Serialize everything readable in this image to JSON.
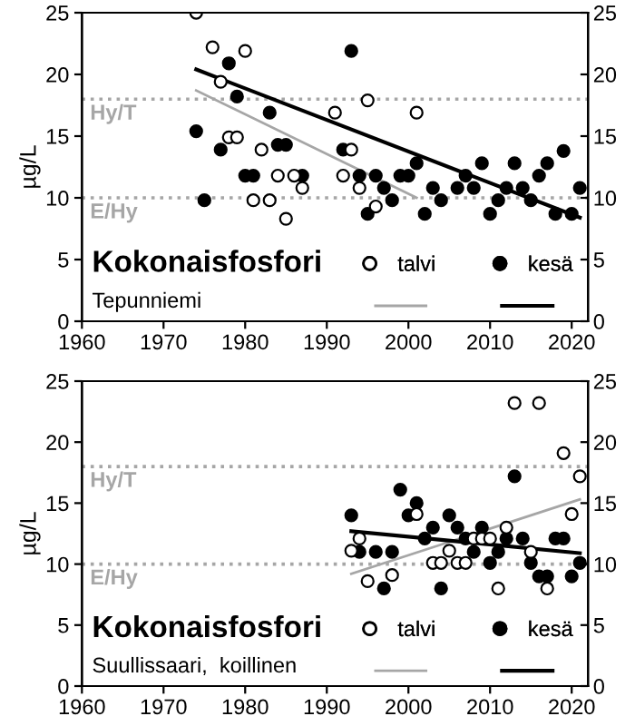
{
  "chart_data": [
    {
      "type": "scatter",
      "title": "Kokonaisfosfori",
      "subtitle": "Tepunniemi",
      "ylabel": "µg/L",
      "xlim": [
        1960,
        2022
      ],
      "xticks": [
        1960,
        1970,
        1980,
        1990,
        2000,
        2010,
        2020
      ],
      "ylim": [
        0,
        25
      ],
      "yticks": [
        0,
        5,
        10,
        15,
        20,
        25
      ],
      "y2lim": [
        0,
        25
      ],
      "y2ticks": [
        0,
        5,
        10,
        15,
        20,
        25
      ],
      "grid": false,
      "legend": "bottom right",
      "marker": "circle",
      "ref_lines": [
        {
          "axis": "y",
          "value": 18,
          "label": "Hy/T",
          "color": "#a6a6a6",
          "line_style": "dotted"
        },
        {
          "axis": "y",
          "value": 10,
          "label": "E/Hy",
          "color": "#a6a6a6",
          "line_style": "dotted"
        }
      ],
      "series": [
        {
          "name": "talvi",
          "color": "#ffffff",
          "x": [
            1974,
            1976,
            1980,
            1977,
            1978,
            1979,
            1982,
            1984,
            1986,
            1987,
            1981,
            1983,
            1985,
            1991,
            1992,
            1993,
            1994,
            1995,
            1996,
            2001
          ],
          "values": [
            25.0,
            22.2,
            21.9,
            19.4,
            14.9,
            14.9,
            13.9,
            11.8,
            11.8,
            10.8,
            9.8,
            9.8,
            8.3,
            16.9,
            11.8,
            13.9,
            10.8,
            17.9,
            9.3,
            16.9
          ]
        },
        {
          "name": "kesä",
          "color": "#000000",
          "x": [
            1974,
            1975,
            1977,
            1978,
            1979,
            1980,
            1981,
            1983,
            1984,
            1985,
            1987,
            1992,
            1993,
            1994,
            1995,
            1996,
            1997,
            1998,
            1999,
            2000,
            2001,
            2002,
            2003,
            2004,
            2006,
            2007,
            2008,
            2009,
            2010,
            2011,
            2012,
            2013,
            2014,
            2015,
            2016,
            2017,
            2018,
            2019,
            2020,
            2021
          ],
          "values": [
            15.4,
            9.8,
            13.9,
            20.9,
            18.2,
            11.8,
            11.8,
            16.9,
            14.3,
            14.3,
            11.8,
            13.9,
            21.9,
            11.8,
            8.7,
            11.8,
            10.8,
            9.8,
            11.8,
            11.8,
            12.8,
            8.7,
            10.8,
            9.8,
            10.8,
            11.8,
            10.8,
            12.8,
            8.7,
            9.8,
            10.8,
            12.8,
            10.8,
            9.8,
            11.8,
            12.8,
            8.7,
            13.8,
            8.7,
            10.8
          ]
        },
        {
          "type": "line",
          "marker": "none",
          "color": "#a6a6a6",
          "x": [
            1974,
            2001
          ],
          "values": [
            18.7,
            10.0
          ]
        },
        {
          "type": "line",
          "marker": "none",
          "color": "#000000",
          "x": [
            1974,
            2021
          ],
          "values": [
            20.4,
            8.4
          ]
        }
      ]
    },
    {
      "type": "scatter",
      "title": "Kokonaisfosfori",
      "subtitle": "Suullissaari,  koillinen",
      "ylabel": "µg/L",
      "xlim": [
        1960,
        2022
      ],
      "xticks": [
        1960,
        1970,
        1980,
        1990,
        2000,
        2010,
        2020
      ],
      "ylim": [
        0,
        25
      ],
      "yticks": [
        0,
        5,
        10,
        15,
        20,
        25
      ],
      "y2lim": [
        0,
        25
      ],
      "y2ticks": [
        0,
        5,
        10,
        15,
        20,
        25
      ],
      "grid": false,
      "legend": "bottom right",
      "marker": "circle",
      "ref_lines": [
        {
          "axis": "y",
          "value": 18,
          "label": "Hy/T",
          "color": "#a6a6a6",
          "line_style": "dotted"
        },
        {
          "axis": "y",
          "value": 10,
          "label": "E/Hy",
          "color": "#a6a6a6",
          "line_style": "dotted"
        }
      ],
      "series": [
        {
          "name": "talvi",
          "color": "#ffffff",
          "x": [
            2013,
            2016,
            2019,
            2021,
            2020,
            2001,
            2012,
            1994,
            2008,
            2009,
            2010,
            1993,
            1998,
            1995,
            2003,
            2004,
            2005,
            2006,
            2007,
            2011,
            2015,
            2017
          ],
          "values": [
            23.2,
            23.2,
            19.1,
            17.2,
            14.1,
            14.1,
            13.0,
            12.1,
            12.1,
            12.1,
            12.1,
            11.1,
            9.1,
            8.6,
            10.1,
            10.1,
            11.1,
            10.1,
            10.1,
            8.0,
            11.0,
            8.0
          ]
        },
        {
          "name": "kesä",
          "color": "#000000",
          "x": [
            2013,
            1999,
            2001,
            1993,
            2000,
            2005,
            2003,
            2006,
            2009,
            2002,
            2007,
            2012,
            2014,
            2018,
            2019,
            1994,
            1996,
            1998,
            1997,
            2008,
            2004,
            2010,
            2011,
            2015,
            2016,
            2017,
            2020,
            2021
          ],
          "values": [
            17.2,
            16.1,
            15.0,
            14.0,
            14.0,
            14.0,
            13.0,
            13.0,
            13.0,
            12.1,
            12.1,
            12.1,
            12.1,
            12.1,
            12.1,
            11.0,
            11.0,
            11.0,
            8.0,
            11.0,
            8.0,
            10.1,
            11.0,
            10.1,
            9.0,
            9.0,
            9.0,
            10.1
          ]
        },
        {
          "type": "line",
          "marker": "none",
          "color": "#a6a6a6",
          "x": [
            1993,
            2021
          ],
          "values": [
            9.2,
            15.3
          ]
        },
        {
          "type": "line",
          "marker": "none",
          "color": "#000000",
          "x": [
            1993,
            2021
          ],
          "values": [
            12.7,
            10.9
          ]
        }
      ]
    }
  ]
}
